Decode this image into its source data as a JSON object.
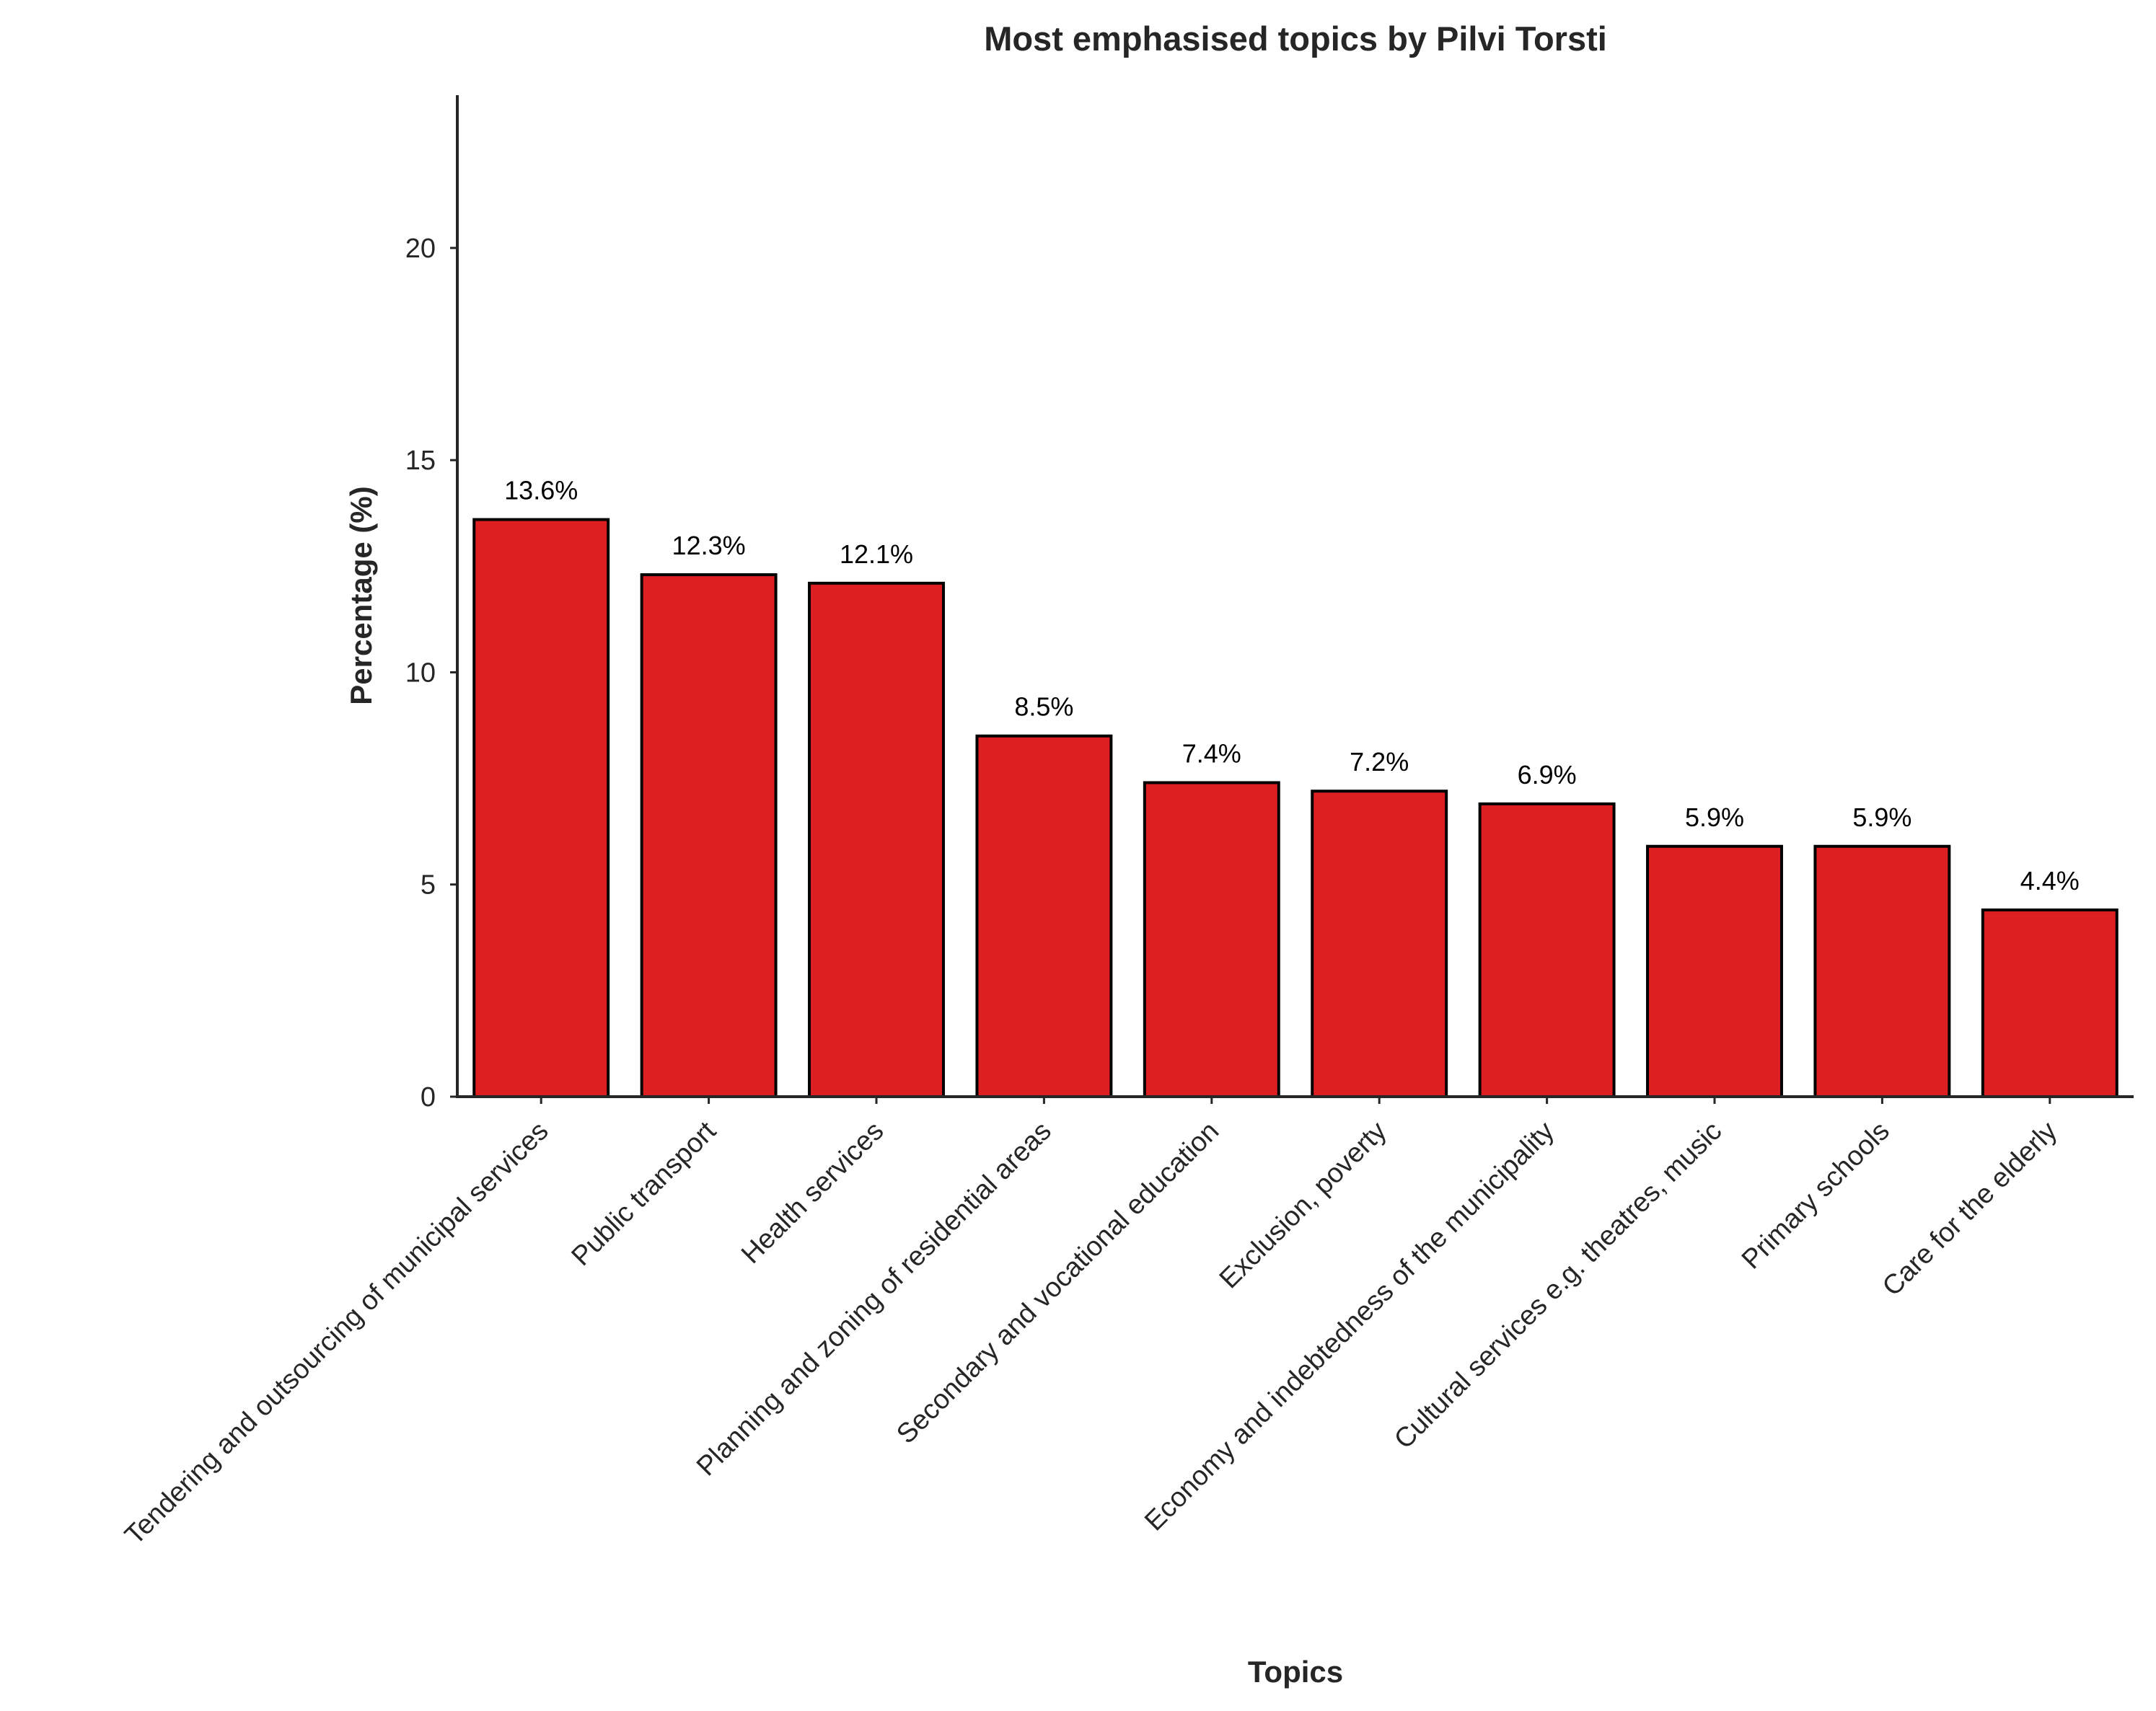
{
  "chart_data": {
    "type": "bar",
    "title": "Most emphasised topics by Pilvi Torsti",
    "xlabel": "Topics",
    "ylabel": "Percentage (%)",
    "ylim": [
      0,
      23.6
    ],
    "yticks": [
      0,
      5,
      10,
      15,
      20
    ],
    "grid": false,
    "bar_color": "#de1f21",
    "bar_edge_color": "#000000",
    "categories": [
      "Tendering and outsourcing of municipal services",
      "Public transport",
      "Health services",
      "Planning and zoning of residential areas",
      "Secondary and vocational education",
      "Exclusion, poverty",
      "Economy and indebtedness of the municipality",
      "Cultural services e.g. theatres, music",
      "Primary schools",
      "Care for the elderly"
    ],
    "values": [
      13.6,
      12.3,
      12.1,
      8.5,
      7.4,
      7.2,
      6.9,
      5.9,
      5.9,
      4.4
    ],
    "value_labels": [
      "13.6%",
      "12.3%",
      "12.1%",
      "8.5%",
      "7.4%",
      "7.2%",
      "6.9%",
      "5.9%",
      "5.9%",
      "4.4%"
    ]
  }
}
